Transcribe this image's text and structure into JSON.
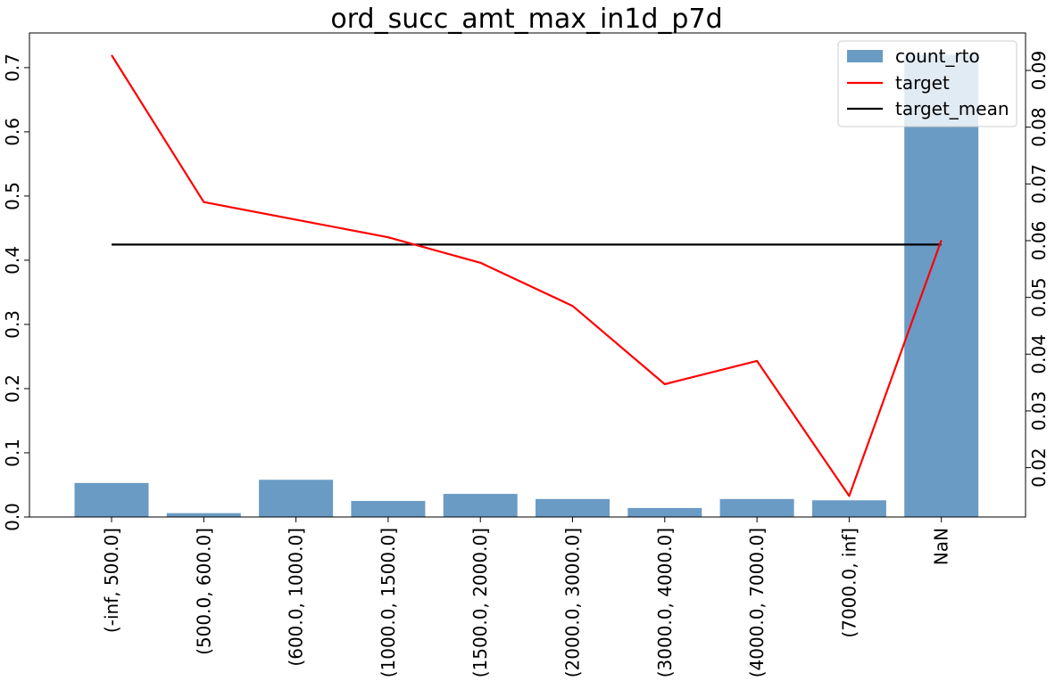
{
  "chart_data": {
    "type": "bar",
    "title": "ord_succ_amt_max_in1d_p7d",
    "xlabel": "",
    "ylabel": "",
    "categories": [
      "(-inf, 500.0]",
      "(500.0, 600.0]",
      "(600.0, 1000.0]",
      "(1000.0, 1500.0]",
      "(1500.0, 2000.0]",
      "(2000.0, 3000.0]",
      "(3000.0, 4000.0]",
      "(4000.0, 7000.0]",
      "(7000.0, inf]",
      "NaN"
    ],
    "series": [
      {
        "name": "count_rto",
        "type": "bar",
        "axis": "left",
        "color": "#6a9bc5",
        "values": [
          0.053,
          0.006,
          0.058,
          0.025,
          0.036,
          0.028,
          0.014,
          0.028,
          0.026,
          0.72
        ]
      },
      {
        "name": "target",
        "type": "line",
        "axis": "right",
        "color": "#ff0000",
        "values": [
          0.0927,
          0.0668,
          0.0637,
          0.0606,
          0.0561,
          0.0485,
          0.0347,
          0.0388,
          0.015,
          0.0601
        ]
      },
      {
        "name": "target_mean",
        "type": "line",
        "axis": "right",
        "color": "#000000",
        "values": [
          0.0593,
          0.0593,
          0.0593,
          0.0593,
          0.0593,
          0.0593,
          0.0593,
          0.0593,
          0.0593,
          0.0593
        ]
      }
    ],
    "ylim_left": [
      0,
      0.754
    ],
    "yticks_left": [
      "0.0",
      "0.1",
      "0.2",
      "0.3",
      "0.4",
      "0.5",
      "0.6",
      "0.7"
    ],
    "ylim_right": [
      0.0113,
      0.0966
    ],
    "yticks_right": [
      "0.02",
      "0.03",
      "0.04",
      "0.05",
      "0.06",
      "0.07",
      "0.08",
      "0.09"
    ],
    "grid": false,
    "legend_position": "top-right"
  }
}
